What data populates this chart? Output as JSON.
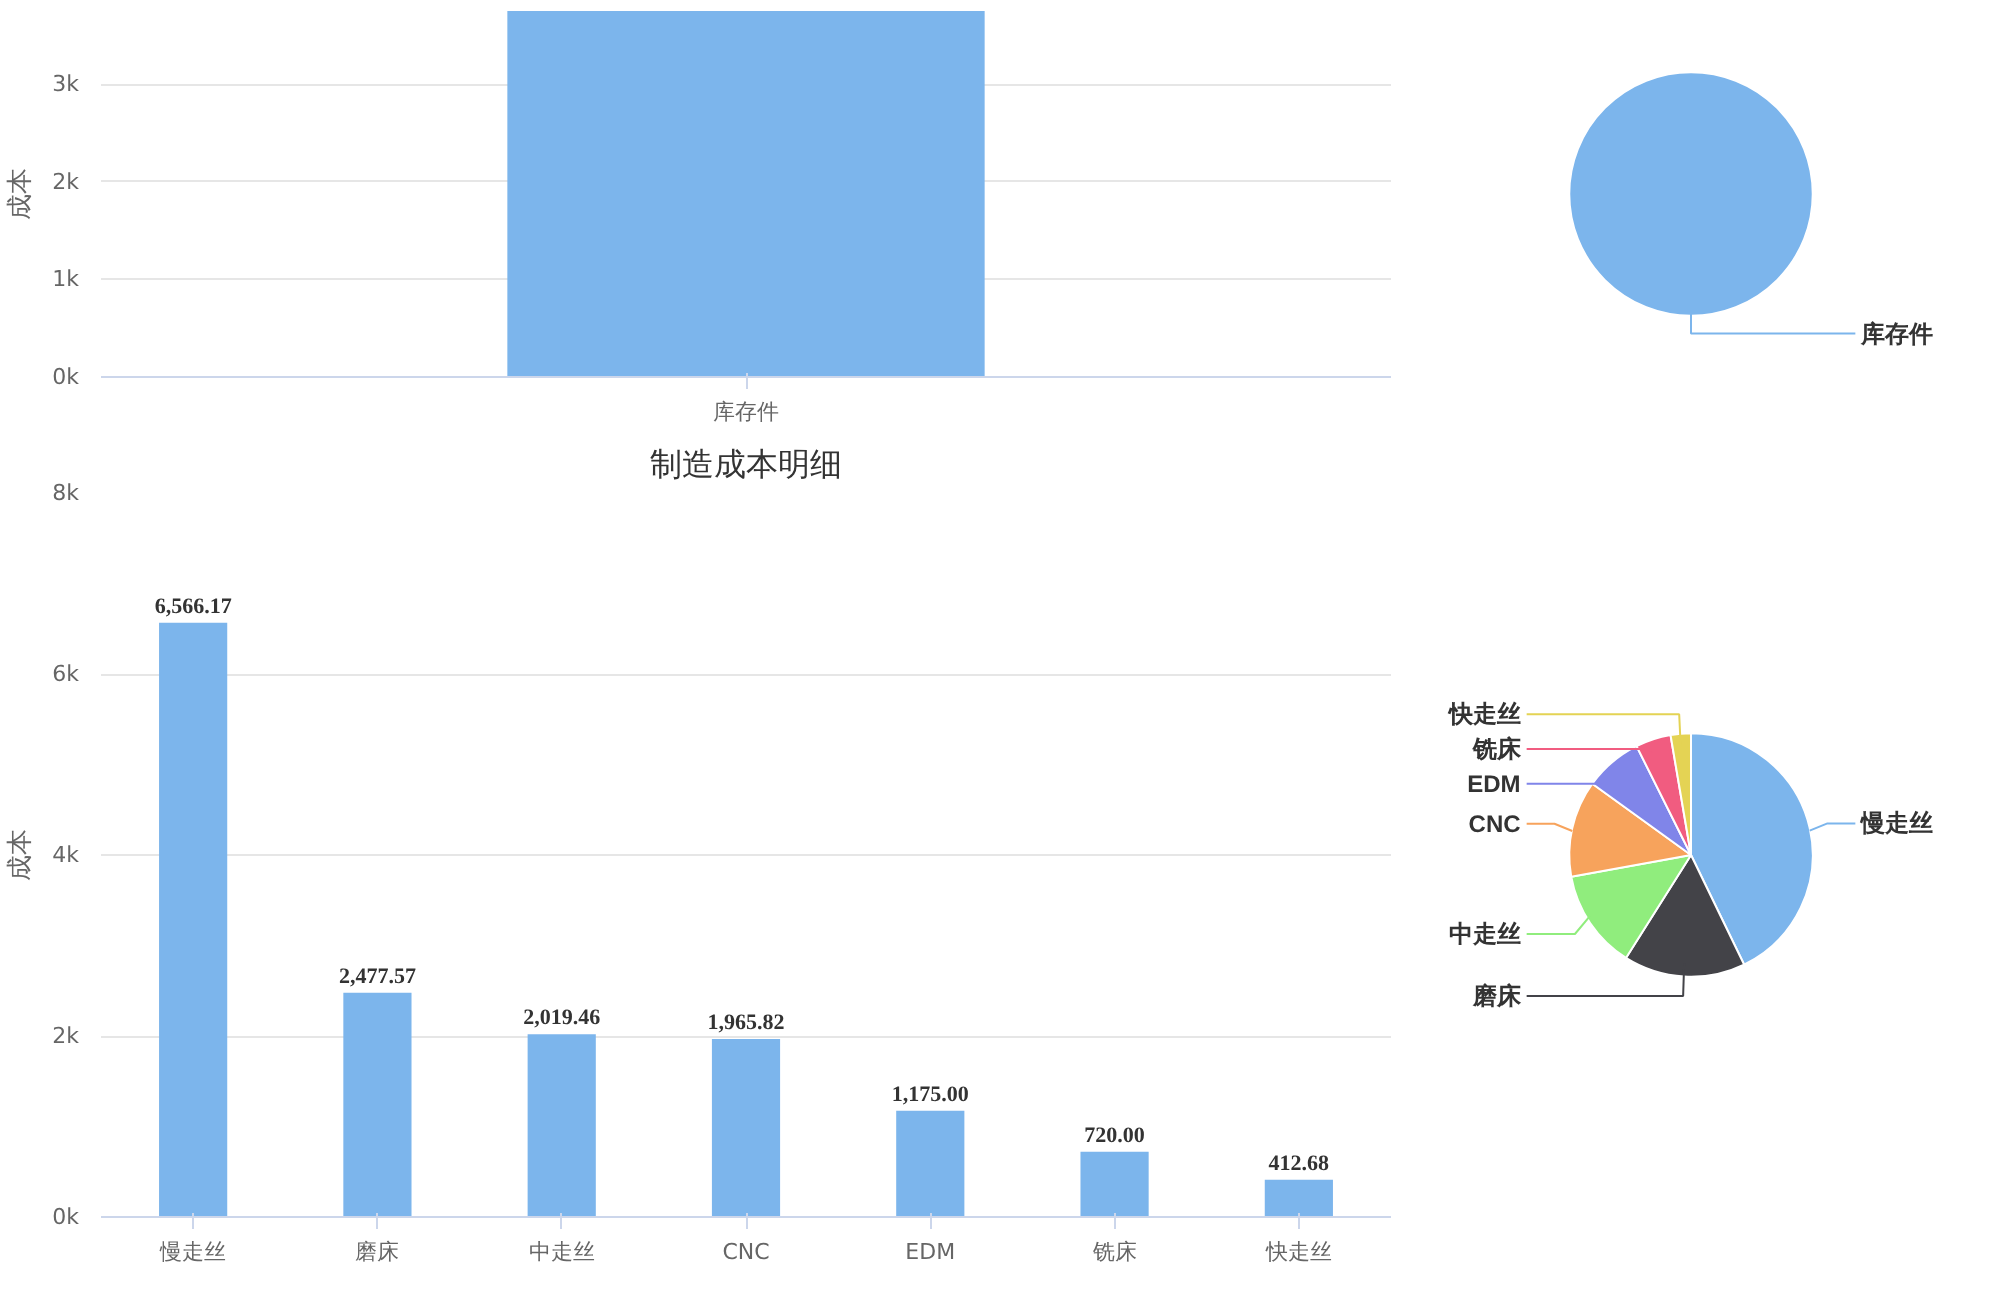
{
  "chart_data": [
    {
      "type": "bar",
      "ylabel": "成本",
      "categories": [
        "库存件"
      ],
      "values": [
        3750
      ],
      "color": "#7cb5ec",
      "ylim": [
        0,
        3750
      ],
      "yticks": [
        {
          "value": 0,
          "label": "0k"
        },
        {
          "value": 1000,
          "label": "1k"
        },
        {
          "value": 2000,
          "label": "2k"
        },
        {
          "value": 3000,
          "label": "3k"
        }
      ],
      "grid": "y"
    },
    {
      "type": "pie",
      "categories": [
        "库存件"
      ],
      "values": [
        100
      ],
      "colors": [
        "#7cb5ec"
      ]
    },
    {
      "type": "bar",
      "title": "制造成本明细",
      "ylabel": "成本",
      "categories": [
        "慢走丝",
        "磨床",
        "中走丝",
        "CNC",
        "EDM",
        "铣床",
        "快走丝"
      ],
      "values": [
        6566.17,
        2477.57,
        2019.46,
        1965.82,
        1175.0,
        720.0,
        412.68
      ],
      "color": "#7cb5ec",
      "ylim": [
        0,
        8000
      ],
      "yticks": [
        {
          "value": 0,
          "label": "0k"
        },
        {
          "value": 2000,
          "label": "2k"
        },
        {
          "value": 4000,
          "label": "4k"
        },
        {
          "value": 6000,
          "label": "6k"
        },
        {
          "value": 8000,
          "label": "8k"
        }
      ],
      "grid": "y",
      "value_labels": [
        "6,566.17",
        "2,477.57",
        "2,019.46",
        "1,965.82",
        "1,175.00",
        "720.00",
        "412.68"
      ]
    },
    {
      "type": "pie",
      "categories": [
        "慢走丝",
        "磨床",
        "中走丝",
        "CNC",
        "EDM",
        "铣床",
        "快走丝"
      ],
      "values": [
        42.82,
        16.15,
        13.17,
        12.82,
        7.66,
        4.69,
        2.69
      ],
      "colors": [
        "#7cb5ec",
        "#434348",
        "#90ed7d",
        "#f7a35c",
        "#8085e9",
        "#f15c80",
        "#e4d354"
      ]
    }
  ]
}
